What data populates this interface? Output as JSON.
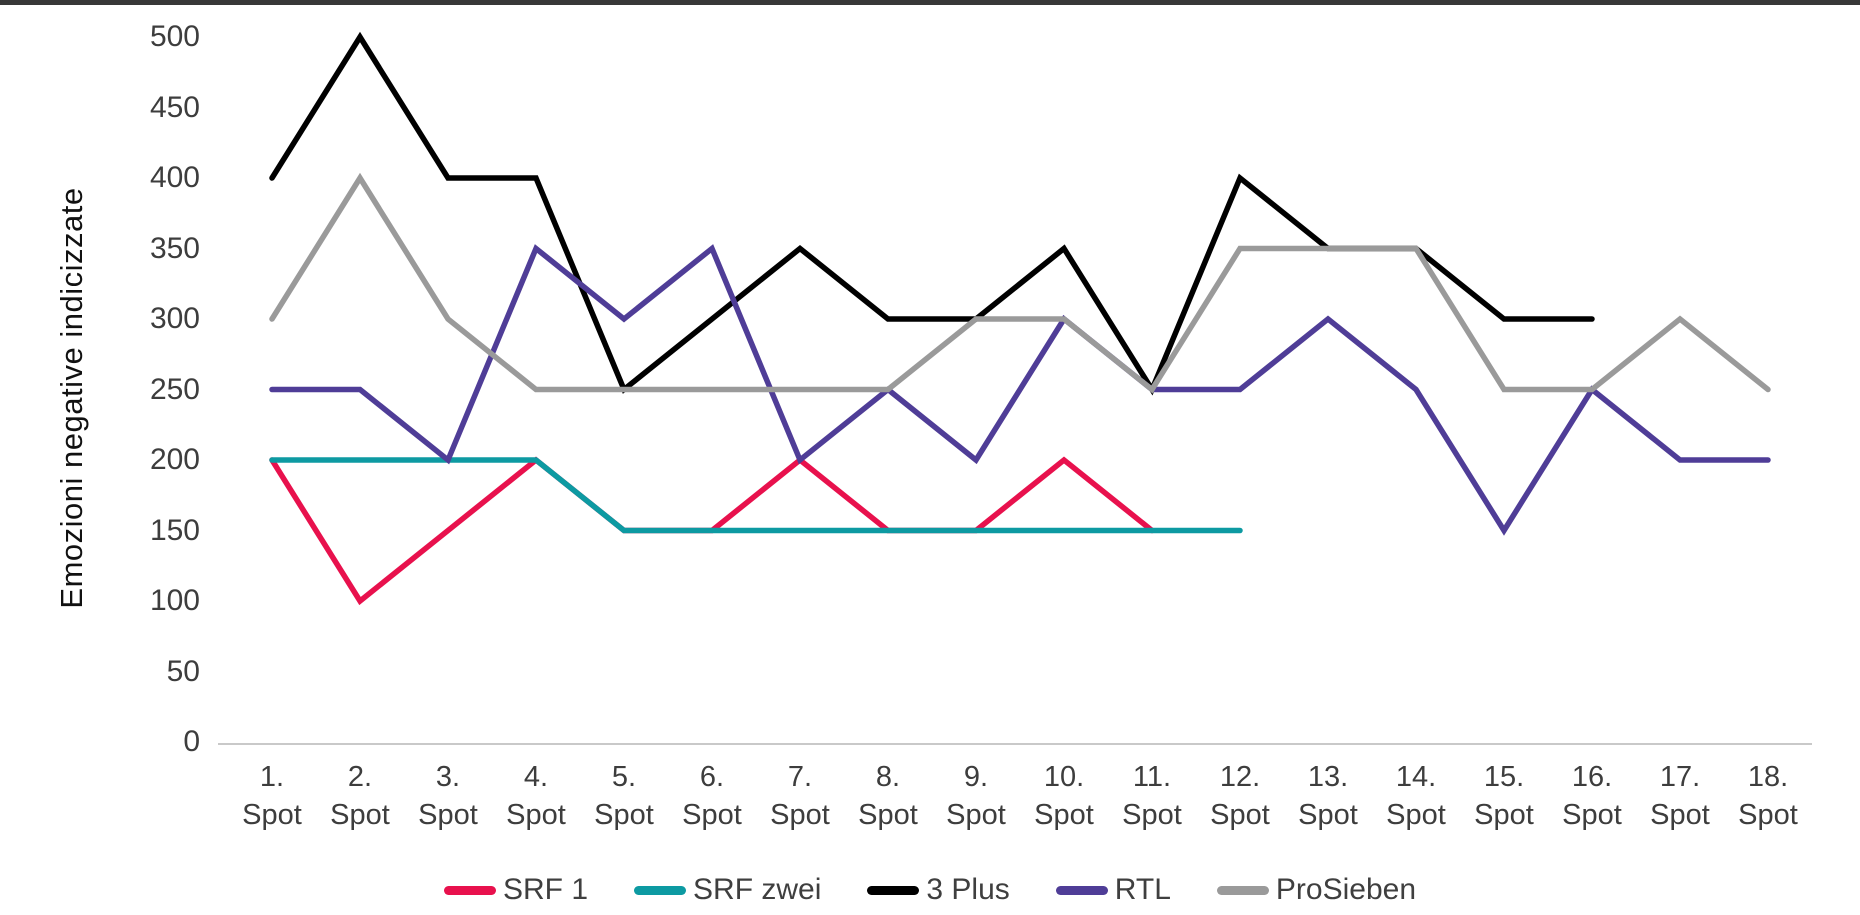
{
  "chart_data": {
    "type": "line",
    "title": "",
    "xlabel": "",
    "ylabel": "Emozioni negative indicizzate",
    "ylim": [
      0,
      500
    ],
    "y_ticks": [
      0,
      50,
      100,
      150,
      200,
      250,
      300,
      350,
      400,
      450,
      500
    ],
    "grid": false,
    "legend_position": "bottom",
    "categories": [
      "1. Spot",
      "2. Spot",
      "3. Spot",
      "4. Spot",
      "5. Spot",
      "6. Spot",
      "7. Spot",
      "8. Spot",
      "9. Spot",
      "10. Spot",
      "11. Spot",
      "12. Spot",
      "13. Spot",
      "14. Spot",
      "15. Spot",
      "16. Spot",
      "17. Spot",
      "18. Spot"
    ],
    "series": [
      {
        "name": "SRF 1",
        "color": "#e8114d",
        "values": [
          200,
          100,
          150,
          200,
          150,
          150,
          200,
          150,
          150,
          200,
          150
        ]
      },
      {
        "name": "SRF zwei",
        "color": "#0d9aa2",
        "values": [
          200,
          200,
          200,
          200,
          150,
          150,
          150,
          150,
          150,
          150,
          150,
          150
        ]
      },
      {
        "name": "3 Plus",
        "color": "#000000",
        "values": [
          400,
          500,
          400,
          400,
          250,
          300,
          350,
          300,
          300,
          350,
          250,
          400,
          350,
          350,
          300,
          300
        ]
      },
      {
        "name": "RTL",
        "color": "#4f3d97",
        "values": [
          250,
          250,
          200,
          350,
          300,
          350,
          200,
          250,
          200,
          300,
          250,
          250,
          300,
          250,
          150,
          250,
          200,
          200
        ]
      },
      {
        "name": "ProSieben",
        "color": "#9a9a9a",
        "values": [
          300,
          400,
          300,
          250,
          250,
          250,
          250,
          250,
          300,
          300,
          250,
          350,
          350,
          350,
          250,
          250,
          300,
          250
        ]
      }
    ],
    "axis_line_color": "#c9c9c9"
  }
}
